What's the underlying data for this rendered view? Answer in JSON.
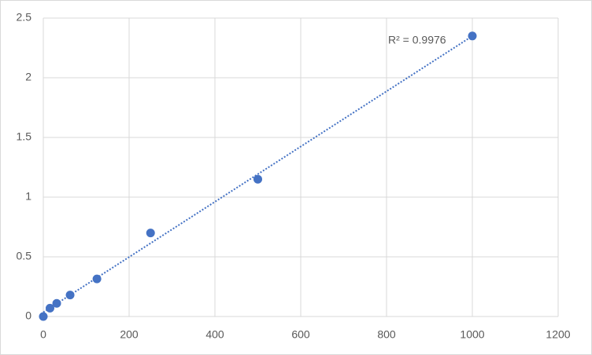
{
  "chart_data": {
    "type": "scatter",
    "x": [
      0,
      15.6,
      31.25,
      62.5,
      125,
      250,
      500,
      1000
    ],
    "series": [
      {
        "color": "#4472c4",
        "values": [
          0,
          0.07,
          0.11,
          0.18,
          0.315,
          0.7,
          1.15,
          2.35
        ]
      }
    ],
    "xlim": [
      0,
      1200
    ],
    "xticks": [
      0,
      200,
      400,
      600,
      800,
      1000,
      1200
    ],
    "ylim": [
      0,
      2.5
    ],
    "yticks": [
      0,
      0.5,
      1,
      1.5,
      2,
      2.5
    ],
    "grid": true,
    "trendline": "linear",
    "annotation": "R² = 0.9976"
  }
}
